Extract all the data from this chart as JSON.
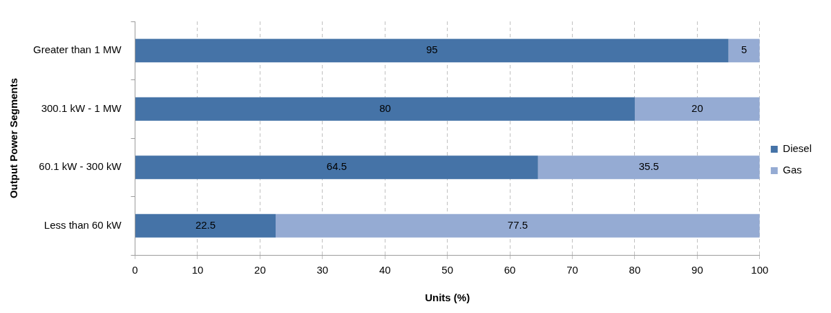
{
  "chart_data": {
    "type": "bar",
    "orientation": "horizontal",
    "stacked": true,
    "xlabel": "Units (%)",
    "ylabel": "Output Power Segments",
    "categories": [
      "Greater than 1 MW",
      "300.1 kW - 1 MW",
      "60.1 kW - 300 kW",
      "Less than 60 kW"
    ],
    "series": [
      {
        "name": "Diesel",
        "color": "#4573a7",
        "values": [
          95,
          80,
          64.5,
          22.5
        ]
      },
      {
        "name": "Gas",
        "color": "#95abd3",
        "values": [
          5,
          20,
          35.5,
          77.5
        ]
      }
    ],
    "xlim": [
      0,
      100
    ],
    "xticks": [
      0,
      10,
      20,
      30,
      40,
      50,
      60,
      70,
      80,
      90,
      100
    ],
    "grid": "x",
    "legend": "right",
    "data_labels": true
  }
}
